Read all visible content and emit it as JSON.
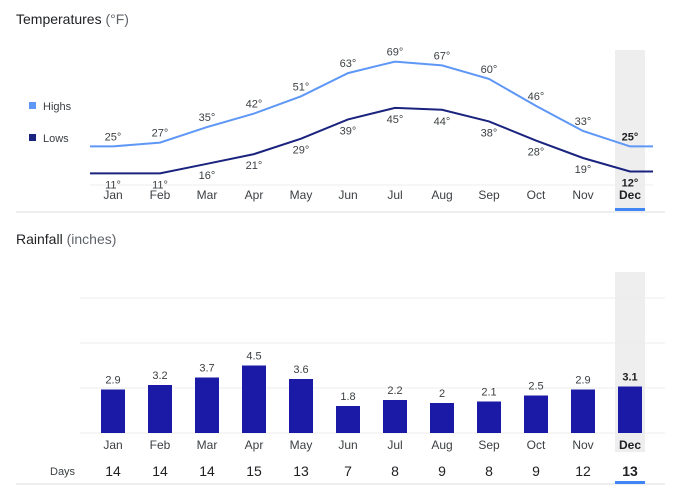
{
  "colors": {
    "highs": "#5e97f6",
    "lows": "#1a237e",
    "bars": "#1a1aa6",
    "selected_accent": "#4285f4",
    "selected_band": "#eeeeee"
  },
  "temperature": {
    "title": "Temperatures",
    "unit": "(°F)",
    "legend": {
      "highs": "Highs",
      "lows": "Lows"
    }
  },
  "rainfall": {
    "title": "Rainfall",
    "unit": "(inches)",
    "days_label": "Days"
  },
  "selected_month": "Dec",
  "chart_data": [
    {
      "type": "line",
      "title": "Temperatures (°F)",
      "categories": [
        "Jan",
        "Feb",
        "Mar",
        "Apr",
        "May",
        "Jun",
        "Jul",
        "Aug",
        "Sep",
        "Oct",
        "Nov",
        "Dec"
      ],
      "series": [
        {
          "name": "Highs",
          "values": [
            25,
            27,
            35,
            42,
            51,
            63,
            69,
            67,
            60,
            46,
            33,
            25
          ],
          "labels": [
            "25°",
            "27°",
            "35°",
            "42°",
            "51°",
            "63°",
            "69°",
            "67°",
            "60°",
            "46°",
            "33°",
            "25°"
          ]
        },
        {
          "name": "Lows",
          "values": [
            11,
            11,
            16,
            21,
            29,
            39,
            45,
            44,
            38,
            28,
            19,
            12
          ],
          "labels": [
            "11°",
            "11°",
            "16°",
            "21°",
            "29°",
            "39°",
            "45°",
            "44°",
            "38°",
            "28°",
            "19°",
            "12°"
          ]
        }
      ],
      "ylim": [
        5,
        75
      ],
      "legend": "left"
    },
    {
      "type": "bar",
      "title": "Rainfall (inches)",
      "categories": [
        "Jan",
        "Feb",
        "Mar",
        "Apr",
        "May",
        "Jun",
        "Jul",
        "Aug",
        "Sep",
        "Oct",
        "Nov",
        "Dec"
      ],
      "values": [
        2.9,
        3.2,
        3.7,
        4.5,
        3.6,
        1.8,
        2.2,
        2,
        2.1,
        2.5,
        2.9,
        3.1
      ],
      "value_labels": [
        "2.9",
        "3.2",
        "3.7",
        "4.5",
        "3.6",
        "1.8",
        "2.2",
        "2",
        "2.1",
        "2.5",
        "2.9",
        "3.1"
      ],
      "ylim": [
        0,
        12
      ],
      "days": [
        "14",
        "14",
        "14",
        "15",
        "13",
        "7",
        "8",
        "9",
        "8",
        "9",
        "12",
        "13"
      ],
      "grid": true
    }
  ]
}
